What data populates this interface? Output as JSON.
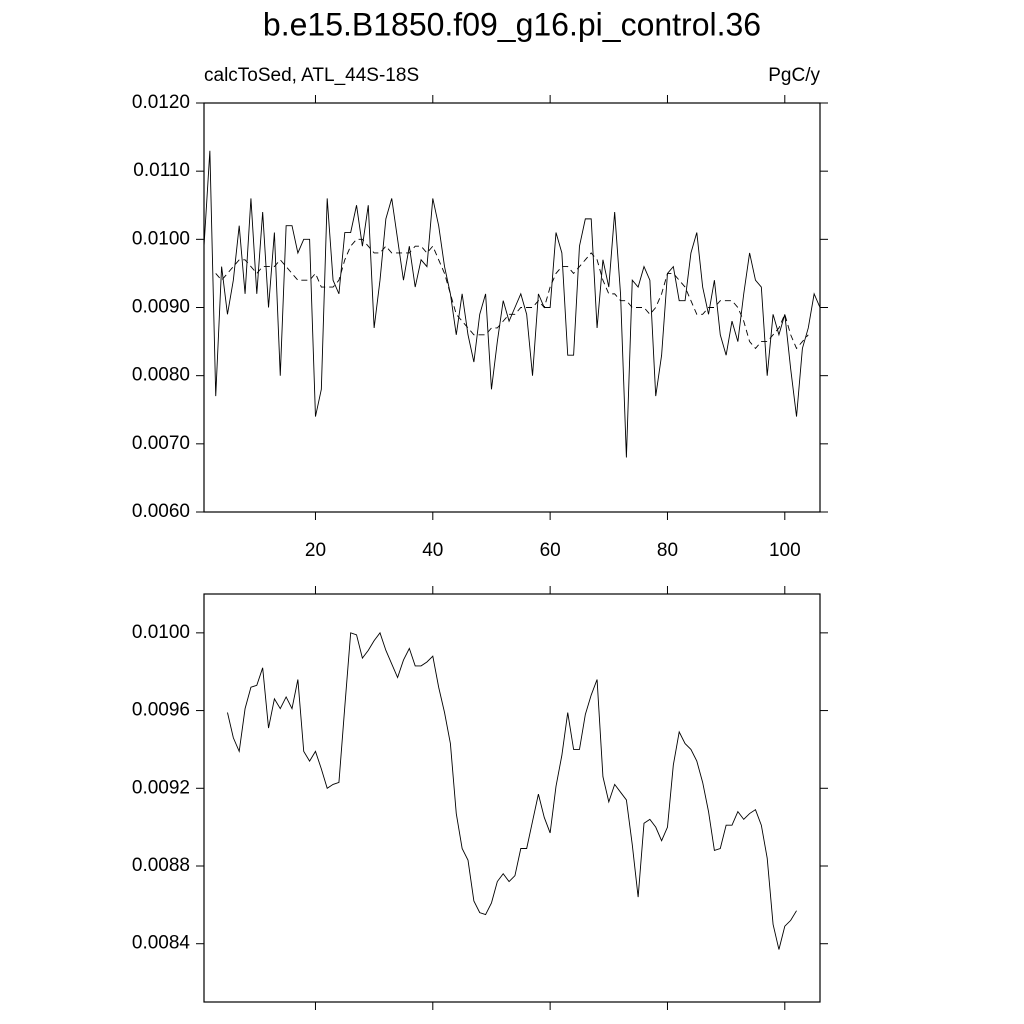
{
  "chart_data": [
    {
      "type": "line",
      "title": "b.e15.B1850.f09_g16.pi_control.36",
      "left_string": "calcToSed, ATL_44S-18S",
      "right_string": "PgC/y",
      "x": [
        1,
        2,
        3,
        4,
        5,
        6,
        7,
        8,
        9,
        10,
        11,
        12,
        13,
        14,
        15,
        16,
        17,
        18,
        19,
        20,
        21,
        22,
        23,
        24,
        25,
        26,
        27,
        28,
        29,
        30,
        31,
        32,
        33,
        34,
        35,
        36,
        37,
        38,
        39,
        40,
        41,
        42,
        43,
        44,
        45,
        46,
        47,
        48,
        49,
        50,
        51,
        52,
        53,
        54,
        55,
        56,
        57,
        58,
        59,
        60,
        61,
        62,
        63,
        64,
        65,
        66,
        67,
        68,
        69,
        70,
        71,
        72,
        73,
        74,
        75,
        76,
        77,
        78,
        79,
        80,
        81,
        82,
        83,
        84,
        85,
        86,
        87,
        88,
        89,
        90,
        91,
        92,
        93,
        94,
        95,
        96,
        97,
        98,
        99,
        100,
        101,
        102,
        103,
        104,
        105,
        106
      ],
      "series": [
        {
          "color": "#000000",
          "dash": false,
          "values": [
            0.0099,
            0.0113,
            0.0077,
            0.0096,
            0.0089,
            0.0094,
            0.0102,
            0.0092,
            0.0106,
            0.0092,
            0.0104,
            0.009,
            0.0101,
            0.008,
            0.0102,
            0.0102,
            0.0098,
            0.01,
            0.01,
            0.0074,
            0.0078,
            0.0106,
            0.0094,
            0.0092,
            0.0101,
            0.0101,
            0.0105,
            0.0099,
            0.0105,
            0.0087,
            0.0094,
            0.0103,
            0.0106,
            0.01,
            0.0094,
            0.0099,
            0.0093,
            0.0097,
            0.0096,
            0.0106,
            0.0102,
            0.0096,
            0.0092,
            0.0086,
            0.0092,
            0.0086,
            0.0082,
            0.0089,
            0.0092,
            0.0078,
            0.0085,
            0.0091,
            0.0088,
            0.009,
            0.0092,
            0.0089,
            0.008,
            0.0092,
            0.009,
            0.009,
            0.0101,
            0.0098,
            0.0083,
            0.0083,
            0.0099,
            0.0103,
            0.0103,
            0.0087,
            0.0097,
            0.0093,
            0.0104,
            0.0092,
            0.0068,
            0.0094,
            0.0093,
            0.0096,
            0.0094,
            0.0077,
            0.0083,
            0.0095,
            0.0096,
            0.0091,
            0.0091,
            0.0098,
            0.0101,
            0.0093,
            0.0089,
            0.0094,
            0.0086,
            0.0083,
            0.0088,
            0.0085,
            0.0092,
            0.0098,
            0.0094,
            0.0093,
            0.008,
            0.0089,
            0.0086,
            0.0089,
            0.0081,
            0.0074,
            0.0084,
            0.0087,
            0.0092,
            0.009
          ]
        },
        {
          "color": "#000000",
          "dash": true,
          "values": [
            null,
            null,
            0.0095,
            0.0094,
            0.0095,
            0.0096,
            0.0097,
            0.0097,
            0.0096,
            0.0095,
            0.0096,
            0.0096,
            0.0096,
            0.0097,
            0.0096,
            0.0095,
            0.0094,
            0.0094,
            0.0094,
            0.0095,
            0.0093,
            0.0093,
            0.0093,
            0.0094,
            0.0097,
            0.0099,
            0.01,
            0.01,
            0.0099,
            0.0098,
            0.0098,
            0.0099,
            0.0098,
            0.0098,
            0.0098,
            0.0098,
            0.0099,
            0.0099,
            0.0098,
            0.0099,
            0.0097,
            0.0095,
            0.0092,
            0.0089,
            0.0088,
            0.0087,
            0.0086,
            0.0086,
            0.0086,
            0.0087,
            0.0087,
            0.0088,
            0.0089,
            0.0089,
            0.009,
            0.009,
            0.009,
            0.0091,
            0.009,
            0.0093,
            0.0095,
            0.0096,
            0.0096,
            0.0095,
            0.0096,
            0.0097,
            0.0098,
            0.0097,
            0.0094,
            0.0092,
            0.0092,
            0.0091,
            0.0091,
            0.009,
            0.009,
            0.009,
            0.0089,
            0.009,
            0.0092,
            0.0095,
            0.0095,
            0.0094,
            0.0093,
            0.0091,
            0.0089,
            0.0089,
            0.009,
            0.009,
            0.0091,
            0.0091,
            0.0091,
            0.009,
            0.0088,
            0.0085,
            0.0084,
            0.0085,
            0.0085,
            0.0086,
            0.0087,
            0.0089,
            0.0086,
            0.0084,
            0.0085,
            0.0086,
            null,
            null
          ]
        }
      ],
      "xlim": [
        1,
        106
      ],
      "xticks": [
        20,
        40,
        60,
        80,
        100
      ],
      "xtick_labels": true,
      "ylim": [
        0.006,
        0.012
      ],
      "yticks": [
        {
          "value": 0.006,
          "label": "0.0060"
        },
        {
          "value": 0.007,
          "label": "0.0070"
        },
        {
          "value": 0.008,
          "label": "0.0080"
        },
        {
          "value": 0.009,
          "label": "0.0090"
        },
        {
          "value": 0.01,
          "label": "0.0100"
        },
        {
          "value": 0.011,
          "label": "0.0110"
        },
        {
          "value": 0.012,
          "label": "0.0120"
        }
      ]
    },
    {
      "type": "line",
      "x": [
        5,
        6,
        7,
        8,
        9,
        10,
        11,
        12,
        13,
        14,
        15,
        16,
        17,
        18,
        19,
        20,
        21,
        22,
        23,
        24,
        25,
        26,
        27,
        28,
        29,
        30,
        31,
        32,
        33,
        34,
        35,
        36,
        37,
        38,
        39,
        40,
        41,
        42,
        43,
        44,
        45,
        46,
        47,
        48,
        49,
        50,
        51,
        52,
        53,
        54,
        55,
        56,
        57,
        58,
        59,
        60,
        61,
        62,
        63,
        64,
        65,
        66,
        67,
        68,
        69,
        70,
        71,
        72,
        73,
        74,
        75,
        76,
        77,
        78,
        79,
        80,
        81,
        82,
        83,
        84,
        85,
        86,
        87,
        88,
        89,
        90,
        91,
        92,
        93,
        94,
        95,
        96,
        97,
        98,
        99,
        100,
        101,
        102
      ],
      "series": [
        {
          "color": "#000000",
          "dash": false,
          "values": [
            0.00959,
            0.00946,
            0.00939,
            0.00961,
            0.00972,
            0.00973,
            0.00982,
            0.00951,
            0.00966,
            0.00961,
            0.00967,
            0.00961,
            0.00976,
            0.00939,
            0.00934,
            0.00939,
            0.0093,
            0.0092,
            0.00922,
            0.00923,
            0.00962,
            0.01,
            0.00999,
            0.00987,
            0.00991,
            0.00996,
            0.01,
            0.00991,
            0.00984,
            0.00977,
            0.00986,
            0.00992,
            0.00983,
            0.00983,
            0.00985,
            0.00988,
            0.00972,
            0.00959,
            0.00943,
            0.00907,
            0.00889,
            0.00883,
            0.00862,
            0.00856,
            0.00855,
            0.00861,
            0.00872,
            0.00876,
            0.00872,
            0.00875,
            0.00889,
            0.00889,
            0.00903,
            0.00917,
            0.00905,
            0.00897,
            0.00921,
            0.00937,
            0.00959,
            0.0094,
            0.0094,
            0.00958,
            0.00968,
            0.00976,
            0.00926,
            0.00913,
            0.00922,
            0.00918,
            0.00914,
            0.00891,
            0.00864,
            0.00902,
            0.00904,
            0.009,
            0.00893,
            0.009,
            0.00932,
            0.00949,
            0.00943,
            0.0094,
            0.00934,
            0.00923,
            0.00908,
            0.00888,
            0.00889,
            0.00901,
            0.00901,
            0.00908,
            0.00904,
            0.00907,
            0.00909,
            0.00901,
            0.00884,
            0.0085,
            0.00837,
            0.00849,
            0.00852,
            0.00857
          ]
        }
      ],
      "xlim": [
        1,
        106
      ],
      "xticks": [
        20,
        40,
        60,
        80,
        100
      ],
      "xtick_labels": false,
      "ylim": [
        0.0081,
        0.0102
      ],
      "yticks": [
        0.0084,
        0.0088,
        0.0092,
        0.0096,
        {
          "value": 0.01,
          "label": "0.0100"
        }
      ]
    }
  ]
}
